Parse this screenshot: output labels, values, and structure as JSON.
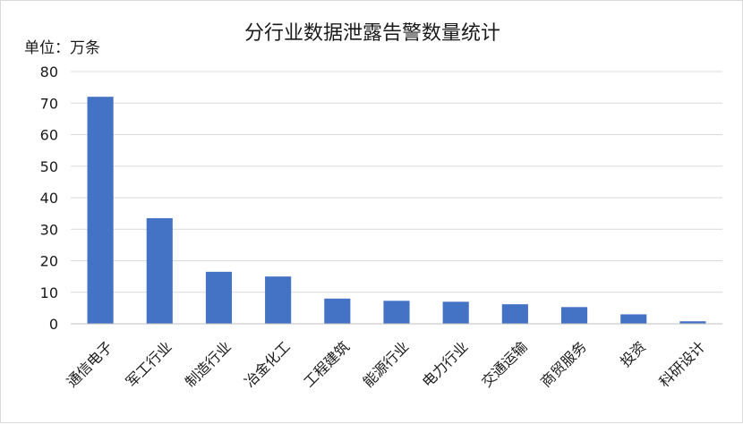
{
  "chart_data": {
    "type": "bar",
    "title": "分行业数据泄露告警数量统计",
    "unit_label": "单位：万条",
    "ylabel": "",
    "xlabel": "",
    "ylim": [
      0,
      80
    ],
    "yticks": [
      0,
      10,
      20,
      30,
      40,
      50,
      60,
      70,
      80
    ],
    "grid": true,
    "categories": [
      "通信电子",
      "军工行业",
      "制造行业",
      "冶金化工",
      "工程建筑",
      "能源行业",
      "电力行业",
      "交通运输",
      "商贸服务",
      "投资",
      "科研设计"
    ],
    "values": [
      72,
      33.5,
      16.5,
      15,
      8,
      7.3,
      7,
      6.2,
      5.3,
      3,
      0.8
    ],
    "colors": {
      "bar": "#4472C4",
      "grid": "#d9d9d9",
      "axis": "#bfbfbf"
    }
  }
}
